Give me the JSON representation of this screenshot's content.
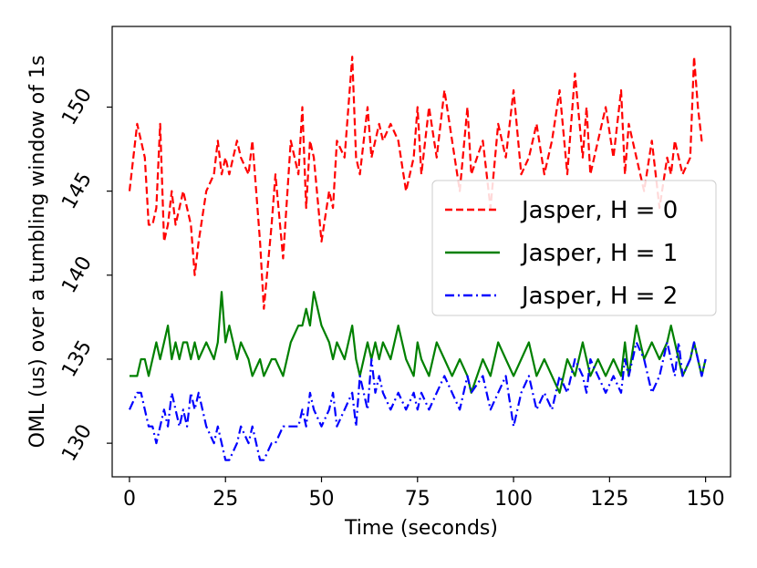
{
  "chart_data": {
    "type": "line",
    "title": "",
    "xlabel": "Time (seconds)",
    "ylabel": "OML (us) over a tumbling window of 1s",
    "xlim": [
      -4.5,
      156.5
    ],
    "ylim": [
      128,
      154.8
    ],
    "xticks": [
      0,
      25,
      50,
      75,
      100,
      125,
      150
    ],
    "yticks": [
      130,
      135,
      140,
      145,
      150
    ],
    "legend_position": "center-right",
    "grid": false,
    "series": [
      {
        "name": "Jasper, H = 0",
        "color": "#ff0000",
        "dash": "dashed",
        "x": [
          0,
          2,
          3,
          4,
          5,
          6,
          7,
          8,
          9,
          10,
          11,
          12,
          13,
          14,
          15,
          16,
          17,
          18,
          20,
          22,
          23,
          24,
          25,
          26,
          28,
          29,
          31,
          32,
          34,
          35,
          37,
          38,
          40,
          42,
          44,
          45,
          46,
          47,
          48,
          50,
          52,
          53,
          54,
          56,
          58,
          59,
          60,
          62,
          63,
          64,
          65,
          66,
          68,
          70,
          72,
          74,
          75,
          76,
          78,
          80,
          82,
          84,
          86,
          88,
          89,
          92,
          94,
          96,
          98,
          100,
          102,
          104,
          106,
          108,
          110,
          112,
          114,
          116,
          118,
          119,
          120,
          122,
          124,
          126,
          128,
          129,
          130,
          132,
          134,
          136,
          138,
          140,
          141,
          142,
          143,
          144,
          146,
          147,
          148,
          149,
          150
        ],
        "values": [
          145,
          149,
          148,
          147,
          143,
          143,
          144,
          149,
          142,
          143,
          145,
          143,
          144,
          145,
          144,
          143,
          140,
          142,
          145,
          146,
          148,
          146,
          147,
          146,
          148,
          147,
          146,
          148,
          142,
          138,
          143,
          146,
          141,
          148,
          146,
          150,
          144,
          148,
          147,
          142,
          145,
          144,
          148,
          147,
          153,
          147,
          146,
          150,
          147,
          148,
          149,
          148,
          149,
          148,
          145,
          147,
          150,
          146,
          150,
          147,
          151,
          148,
          145,
          150,
          146,
          148,
          144,
          149,
          147,
          151,
          146,
          147,
          149,
          146,
          148,
          151,
          146,
          152,
          147,
          150,
          146,
          148,
          150,
          147,
          151,
          146,
          149,
          147,
          145,
          148,
          144,
          147,
          146,
          148,
          147,
          146,
          147,
          153,
          150,
          148,
          148
        ]
      },
      {
        "name": "Jasper, H = 1",
        "color": "#008000",
        "dash": "solid",
        "x": [
          0,
          2,
          3,
          4,
          5,
          6,
          7,
          8,
          9,
          10,
          11,
          12,
          13,
          14,
          15,
          16,
          17,
          18,
          20,
          22,
          23,
          24,
          25,
          26,
          28,
          29,
          31,
          32,
          34,
          35,
          37,
          38,
          40,
          42,
          44,
          45,
          46,
          47,
          48,
          50,
          52,
          53,
          54,
          56,
          58,
          59,
          60,
          62,
          63,
          64,
          65,
          66,
          68,
          70,
          72,
          74,
          75,
          76,
          78,
          80,
          82,
          84,
          86,
          88,
          89,
          92,
          94,
          96,
          98,
          100,
          102,
          104,
          106,
          108,
          110,
          112,
          114,
          116,
          118,
          119,
          120,
          122,
          124,
          126,
          128,
          129,
          130,
          132,
          134,
          136,
          138,
          140,
          141,
          142,
          143,
          144,
          146,
          147,
          148,
          149,
          150
        ],
        "values": [
          134,
          134,
          135,
          135,
          134,
          135,
          136,
          135,
          136,
          137,
          135,
          136,
          135,
          136,
          136,
          135,
          136,
          135,
          136,
          135,
          136,
          139,
          136,
          137,
          135,
          136,
          135,
          134,
          135,
          134,
          135,
          135,
          134,
          136,
          137,
          137,
          138,
          137,
          139,
          137,
          136,
          135,
          136,
          135,
          137,
          135,
          134,
          136,
          135,
          136,
          135,
          136,
          135,
          137,
          135,
          134,
          136,
          135,
          134,
          136,
          135,
          134,
          135,
          134,
          133,
          135,
          134,
          136,
          135,
          134,
          135,
          136,
          134,
          135,
          134,
          133,
          135,
          134,
          136,
          135,
          134,
          135,
          134,
          135,
          134,
          136,
          134,
          137,
          135,
          136,
          135,
          136,
          137,
          136,
          135,
          134,
          135,
          136,
          135,
          134,
          135
        ]
      },
      {
        "name": "Jasper, H = 2",
        "color": "#0000ff",
        "dash": "dashdot",
        "x": [
          0,
          2,
          3,
          4,
          5,
          6,
          7,
          8,
          9,
          10,
          11,
          12,
          13,
          14,
          15,
          16,
          17,
          18,
          20,
          22,
          23,
          24,
          25,
          26,
          28,
          29,
          31,
          32,
          34,
          35,
          37,
          38,
          40,
          42,
          44,
          45,
          46,
          47,
          48,
          50,
          52,
          53,
          54,
          56,
          58,
          59,
          60,
          62,
          63,
          64,
          65,
          66,
          68,
          70,
          72,
          74,
          75,
          76,
          78,
          80,
          82,
          84,
          86,
          88,
          89,
          92,
          94,
          96,
          98,
          100,
          102,
          104,
          106,
          108,
          110,
          112,
          114,
          116,
          118,
          119,
          120,
          122,
          124,
          126,
          128,
          129,
          130,
          132,
          134,
          136,
          138,
          140,
          141,
          142,
          143,
          144,
          146,
          147,
          148,
          149,
          150
        ],
        "values": [
          132,
          133,
          133,
          132,
          131,
          131,
          130,
          131,
          132,
          131,
          133,
          132,
          131,
          132,
          131,
          133,
          132,
          133,
          131,
          130,
          131,
          130,
          129,
          129,
          130,
          131,
          130,
          131,
          129,
          129,
          130,
          130,
          131,
          131,
          131,
          132,
          131,
          133,
          132,
          131,
          132,
          133,
          131,
          132,
          133,
          131,
          134,
          132,
          135,
          133,
          134,
          133,
          132,
          133,
          132,
          133,
          132,
          133,
          132,
          133,
          134,
          133,
          132,
          134,
          133,
          134,
          132,
          133,
          134,
          131,
          133,
          134,
          132,
          133,
          132,
          134,
          133,
          135,
          134,
          133,
          135,
          134,
          133,
          134,
          133,
          135,
          134,
          136,
          135,
          133,
          134,
          136,
          135,
          134,
          136,
          134,
          135,
          136,
          135,
          134,
          135
        ]
      }
    ]
  }
}
